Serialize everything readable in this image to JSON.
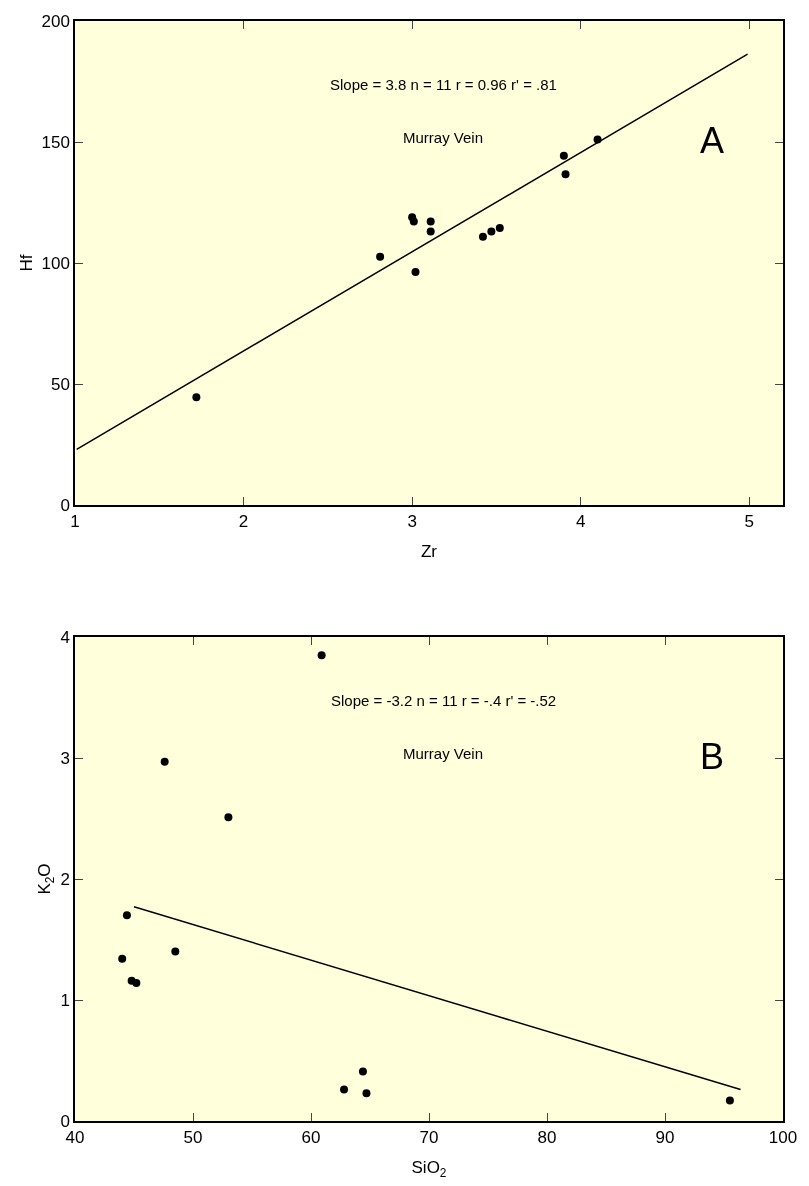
{
  "chart_data": [
    {
      "type": "scatter",
      "xlabel": "Zr",
      "ylabel": "Hf",
      "xlim": [
        1,
        5.2
      ],
      "ylim": [
        0,
        200
      ],
      "xticks": [
        1,
        2,
        3,
        4,
        5
      ],
      "yticks": [
        0,
        50,
        100,
        150,
        200
      ],
      "grid": false,
      "annotations": [
        "Slope = 3.8 n = 11 r = 0.96 r' = .81",
        "Murray Vein",
        "A"
      ],
      "series": [
        {
          "marker": "circle",
          "color": "#000000",
          "x": [
            1.72,
            2.81,
            3.0,
            3.01,
            3.02,
            3.11,
            3.11,
            3.42,
            3.47,
            3.52,
            3.9,
            3.91,
            4.1
          ],
          "values": [
            44.5,
            102.6,
            118.9,
            117.1,
            96.3,
            117.1,
            113,
            110.8,
            113,
            114.5,
            144.3,
            136.7,
            151
          ]
        },
        {
          "type": "line",
          "marker": "none",
          "color": "#000000",
          "x": [
            1.01,
            4.99
          ],
          "values": [
            23,
            186.3
          ]
        }
      ]
    },
    {
      "type": "scatter",
      "xlabel": "SiO$_{2}$",
      "ylabel": "K$_{2}$O",
      "xlim": [
        40,
        100
      ],
      "ylim": [
        0,
        4
      ],
      "xticks": [
        40,
        50,
        60,
        70,
        80,
        90,
        100
      ],
      "yticks": [
        0,
        1,
        2,
        3,
        4
      ],
      "grid": false,
      "annotations": [
        "Slope = -3.2 n = 11 r = -.4 r' = -.52",
        "Murray Vein",
        "B"
      ],
      "series": [
        {
          "marker": "circle",
          "color": "#000000",
          "x": [
            60.9,
            47.6,
            53.0,
            44.4,
            44.0,
            48.5,
            44.8,
            45.2,
            64.4,
            62.8,
            64.7,
            95.5
          ],
          "values": [
            3.85,
            2.97,
            2.51,
            1.7,
            1.34,
            1.4,
            1.16,
            1.14,
            0.41,
            0.26,
            0.23,
            0.17
          ]
        },
        {
          "type": "line",
          "marker": "none",
          "color": "#000000",
          "x": [
            45.0,
            96.4
          ],
          "values": [
            1.77,
            0.26
          ]
        }
      ]
    }
  ]
}
